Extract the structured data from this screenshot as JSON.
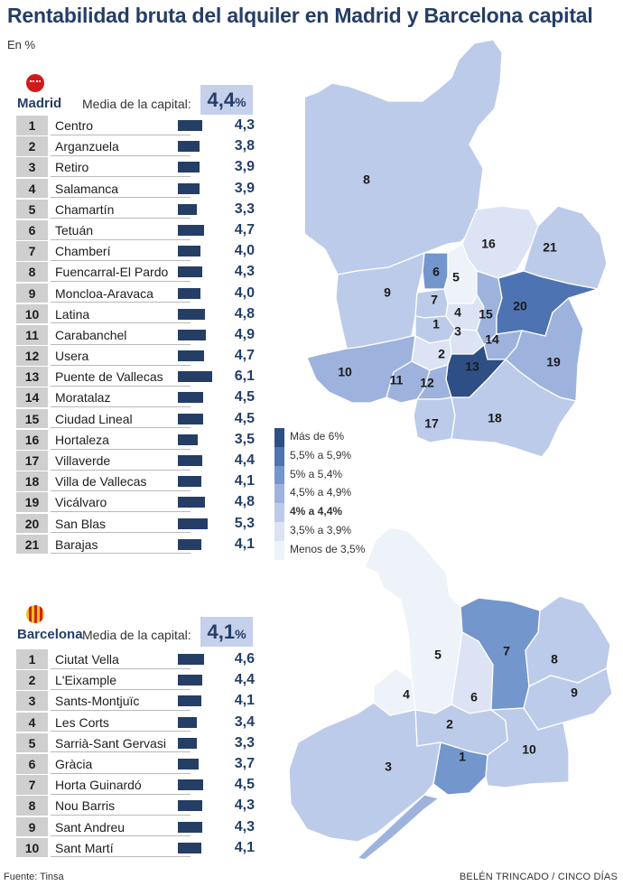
{
  "title": "Rentabilidad bruta del alquiler en Madrid y Barcelona capital",
  "subtitle": "En %",
  "source": "Fuente: Tinsa",
  "credit": "BELÉN TRINCADO / CINCO DÍAS",
  "avg_label": "Media de la capital:",
  "colors": {
    "bar": "#243e66",
    "scale": [
      "#2d4f85",
      "#4e73b3",
      "#7396cd",
      "#9db3de",
      "#bccbea",
      "#dbe3f4",
      "#eef2f9"
    ]
  },
  "legend": [
    {
      "label": "Más de 6%",
      "bold": false
    },
    {
      "label": "5,5% a 5,9%",
      "bold": false
    },
    {
      "label": "5% a 5,4%",
      "bold": false
    },
    {
      "label": "4,5% a 4,9%",
      "bold": false
    },
    {
      "label": "4% a 4,4%",
      "bold": true
    },
    {
      "label": "3,5% a 3,9%",
      "bold": false
    },
    {
      "label": "Menos de 3,5%",
      "bold": false
    }
  ],
  "chart_data": [
    {
      "type": "bar",
      "city": "Madrid",
      "average": {
        "value": "4,4",
        "unit": "%"
      },
      "unit": "%",
      "ranks": [
        "1",
        "2",
        "3",
        "4",
        "5",
        "6",
        "7",
        "8",
        "9",
        "10",
        "11",
        "12",
        "13",
        "14",
        "15",
        "16",
        "17",
        "18",
        "19",
        "20",
        "21"
      ],
      "categories": [
        "Centro",
        "Arganzuela",
        "Retiro",
        "Salamanca",
        "Chamartín",
        "Tetuán",
        "Chamberí",
        "Fuencarral-El Pardo",
        "Moncloa-Aravaca",
        "Latina",
        "Carabanchel",
        "Usera",
        "Puente de Vallecas",
        "Moratalaz",
        "Ciudad Lineal",
        "Hortaleza",
        "Villaverde",
        "Villa de Vallecas",
        "Vicálvaro",
        "San Blas",
        "Barajas"
      ],
      "values": [
        4.3,
        3.8,
        3.9,
        3.9,
        3.3,
        4.7,
        4.0,
        4.3,
        4.0,
        4.8,
        4.9,
        4.7,
        6.1,
        4.5,
        4.5,
        3.5,
        4.4,
        4.1,
        4.8,
        5.3,
        4.1
      ],
      "labels": [
        "4,3",
        "3,8",
        "3,9",
        "3,9",
        "3,3",
        "4,7",
        "4,0",
        "4,3",
        "4,0",
        "4,8",
        "4,9",
        "4,7",
        "6,1",
        "4,5",
        "4,5",
        "3,5",
        "4,4",
        "4,1",
        "4,8",
        "5,3",
        "4,1"
      ]
    },
    {
      "type": "bar",
      "city": "Barcelona",
      "average": {
        "value": "4,1",
        "unit": "%"
      },
      "unit": "%",
      "ranks": [
        "1",
        "2",
        "3",
        "4",
        "5",
        "6",
        "7",
        "8",
        "9",
        "10"
      ],
      "categories": [
        "Ciutat Vella",
        "L'Eixample",
        "Sants-Montjuïc",
        "Les Corts",
        "Sarrià-Sant Gervasi",
        "Gràcia",
        "Horta Guinardó",
        "Nou Barris",
        "Sant Andreu",
        "Sant Martí"
      ],
      "values": [
        4.6,
        4.4,
        4.1,
        3.4,
        3.3,
        3.7,
        4.5,
        4.3,
        4.3,
        4.1
      ],
      "labels": [
        "4,6",
        "4,4",
        "4,1",
        "3,4",
        "3,3",
        "3,7",
        "4,5",
        "4,3",
        "4,3",
        "4,1"
      ]
    }
  ]
}
